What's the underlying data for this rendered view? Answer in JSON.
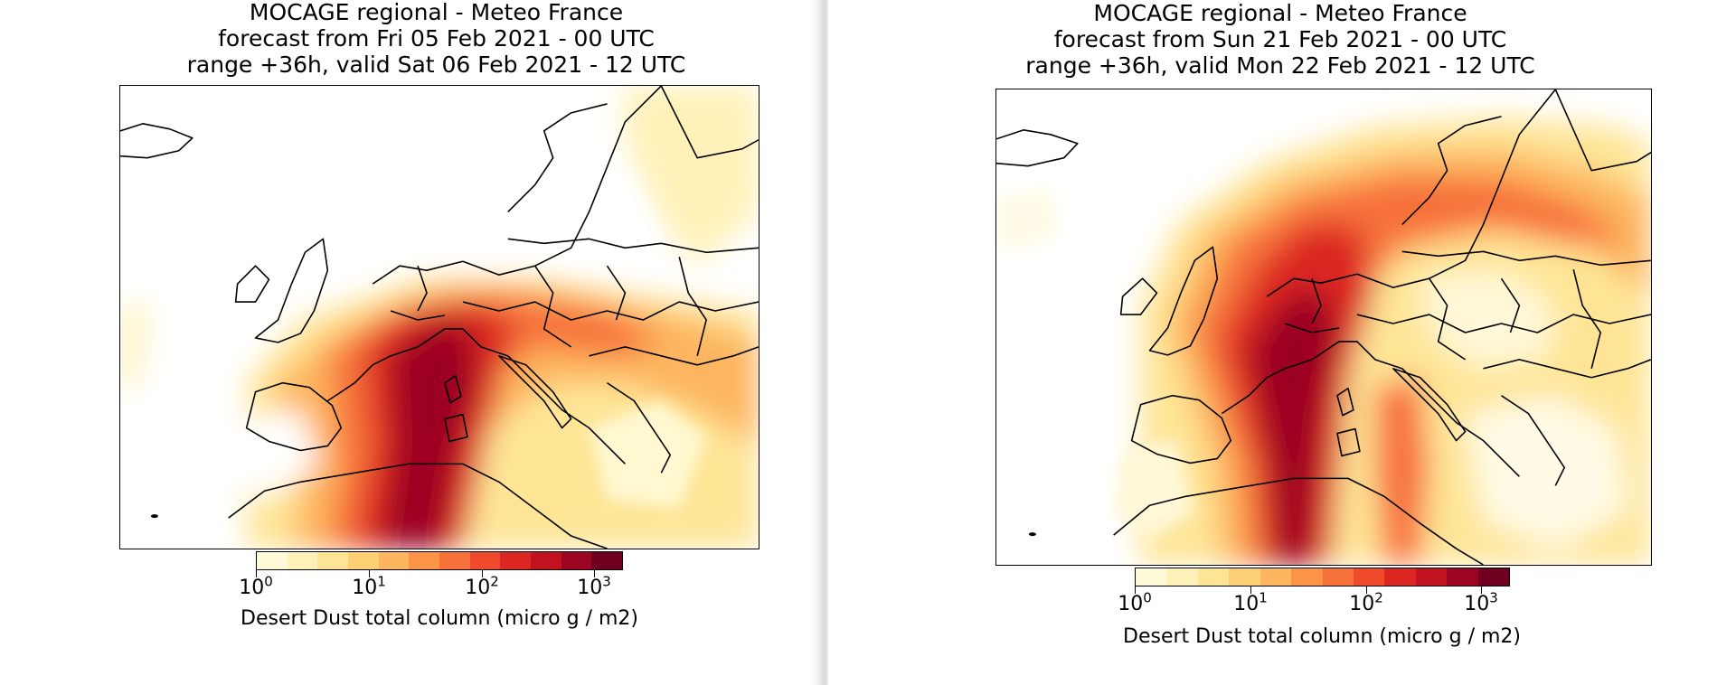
{
  "colors": {
    "land_outline": "#000000",
    "background": "#ffffff",
    "scale": [
      "#fffbd8",
      "#fff1b7",
      "#fee596",
      "#fed076",
      "#fdb55f",
      "#fc9447",
      "#f7713a",
      "#ef4a2c",
      "#dc2621",
      "#c1121f",
      "#9b0521",
      "#6f001f"
    ]
  },
  "panels": [
    {
      "title_lines": [
        "MOCAGE regional - Meteo France",
        "forecast from Fri 05 Feb 2021 - 00 UTC",
        "range +36h, valid Sat 06 Feb 2021 - 12 UTC"
      ],
      "colorbar": {
        "ticks": [
          {
            "base": "10",
            "exp": "0"
          },
          {
            "base": "10",
            "exp": "1"
          },
          {
            "base": "10",
            "exp": "2"
          },
          {
            "base": "10",
            "exp": "3"
          }
        ],
        "label": "Desert Dust total column (micro g / m2)"
      }
    },
    {
      "title_lines": [
        "MOCAGE regional - Meteo France",
        "forecast from Sun 21 Feb 2021 - 00 UTC",
        "range +36h, valid Mon 22 Feb 2021 - 12 UTC"
      ],
      "colorbar": {
        "ticks": [
          {
            "base": "10",
            "exp": "0"
          },
          {
            "base": "10",
            "exp": "1"
          },
          {
            "base": "10",
            "exp": "2"
          },
          {
            "base": "10",
            "exp": "3"
          }
        ],
        "label": "Desert Dust total column (micro g / m2)"
      }
    }
  ]
}
